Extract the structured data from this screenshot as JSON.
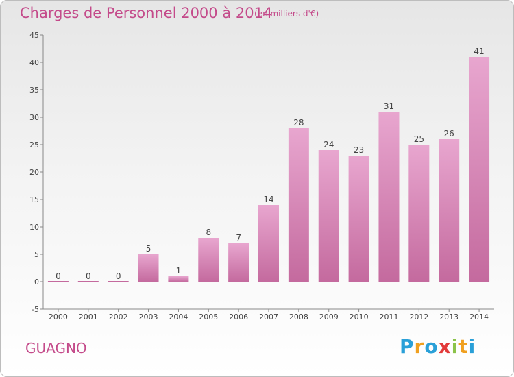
{
  "title": "Charges de Personnel 2000 à 2014",
  "subtitle": "(en milliers d'€)",
  "place": "GUAGNO",
  "logo": {
    "letters": [
      "P",
      "r",
      "o",
      "x",
      "i",
      "t",
      "i"
    ],
    "colors": [
      "#2aa0d8",
      "#f0a020",
      "#2aa0d8",
      "#e23a3a",
      "#8bc34a",
      "#f0a020",
      "#2aa0d8"
    ]
  },
  "colors": {
    "bar": "#c46a9e",
    "bar_light": "#e8a6cf",
    "text_accent": "#c44a8a"
  },
  "chart_data": {
    "type": "bar",
    "categories": [
      "2000",
      "2001",
      "2002",
      "2003",
      "2004",
      "2005",
      "2006",
      "2007",
      "2008",
      "2009",
      "2010",
      "2011",
      "2012",
      "2013",
      "2014"
    ],
    "values": [
      0,
      0,
      0,
      5,
      1,
      8,
      7,
      14,
      28,
      24,
      23,
      31,
      25,
      26,
      41
    ],
    "title": "Charges de Personnel 2000 à 2014",
    "ylim": [
      -5,
      45
    ],
    "yticks": [
      -5,
      0,
      5,
      10,
      15,
      20,
      25,
      30,
      35,
      40,
      45
    ],
    "grid": false
  }
}
